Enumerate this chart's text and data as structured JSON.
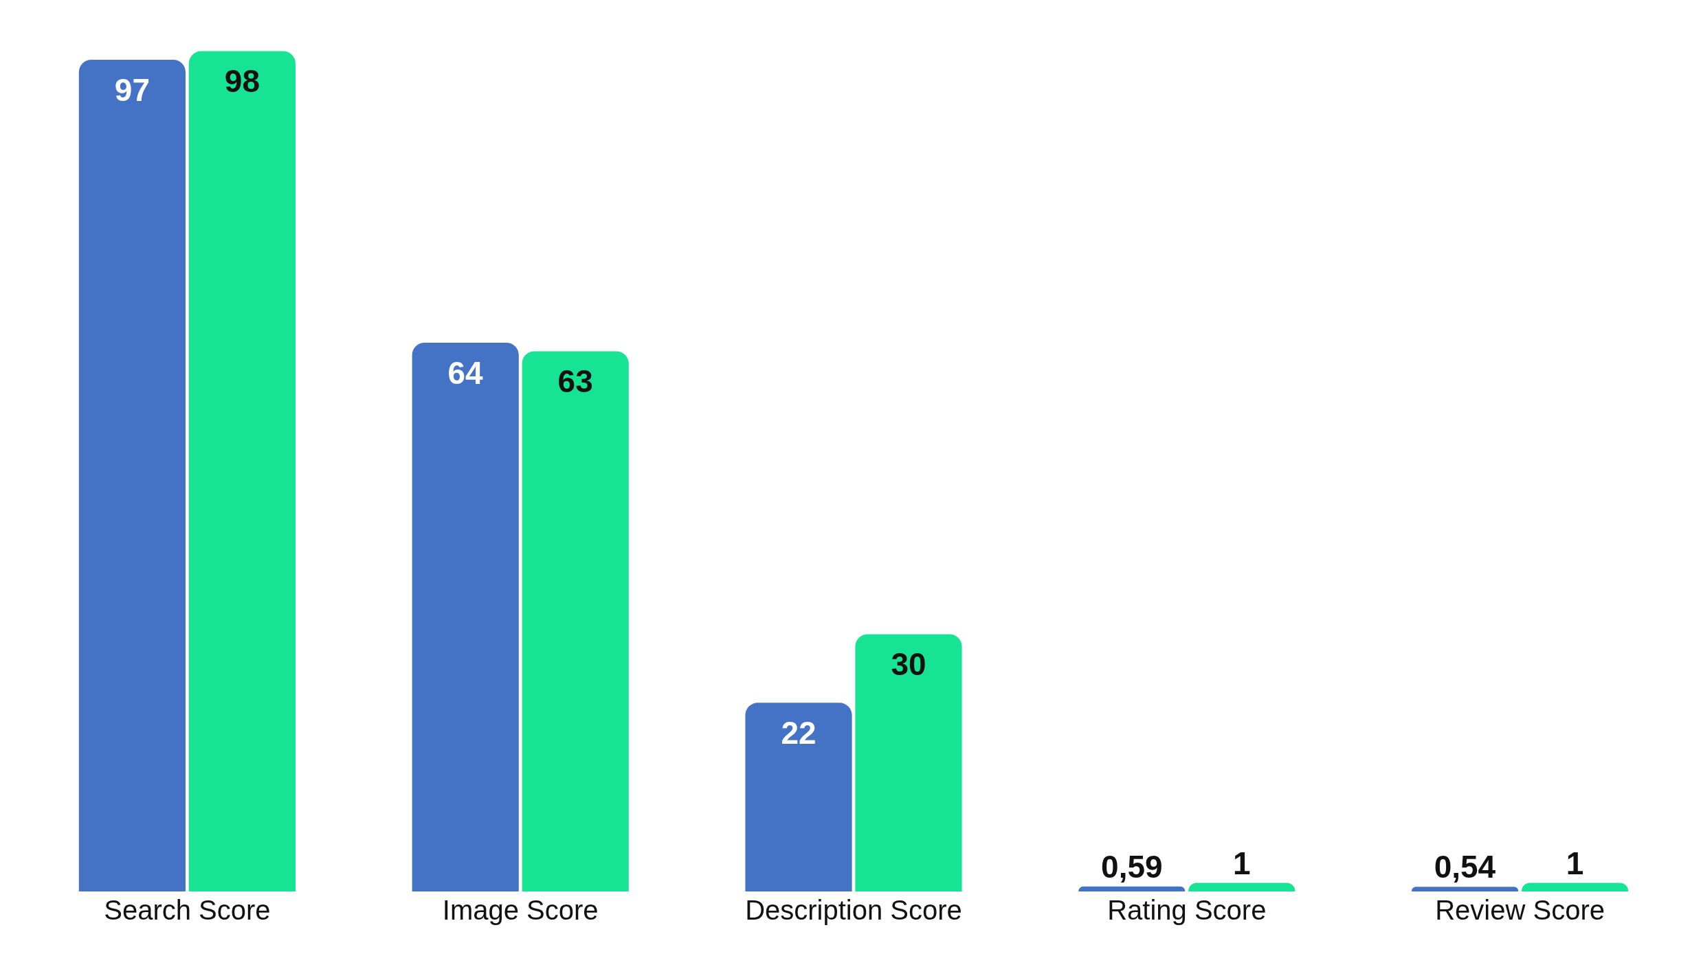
{
  "chart_data": {
    "type": "bar",
    "categories": [
      "Search Score",
      "Image Score",
      "Description Score",
      "Rating Score",
      "Review Score"
    ],
    "series": [
      {
        "color": "#4472c4",
        "values": [
          97,
          64,
          22,
          0.59,
          0.54
        ],
        "value_labels": [
          "97",
          "64",
          "22",
          "0,59",
          "0,54"
        ]
      },
      {
        "color": "#17e394",
        "values": [
          98,
          63,
          30,
          1,
          1
        ],
        "value_labels": [
          "98",
          "63",
          "30",
          "1",
          "1"
        ]
      }
    ],
    "tick_labels": "x"
  }
}
